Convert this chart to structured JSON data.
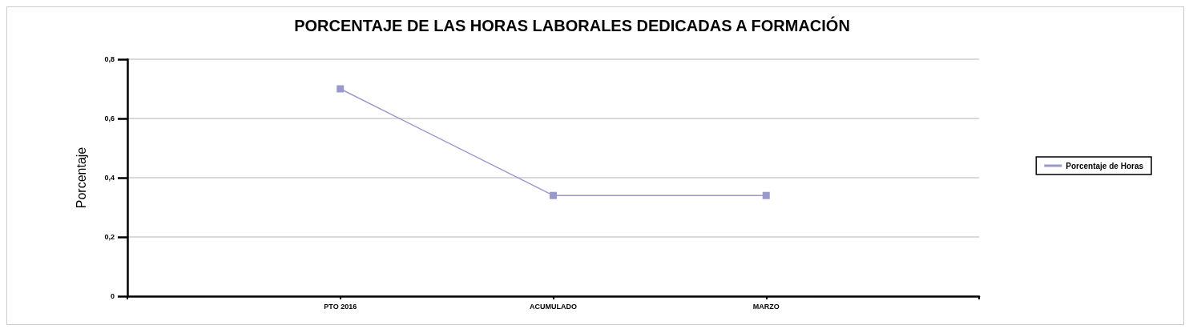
{
  "chart_data": {
    "type": "line",
    "title": "PORCENTAJE DE LAS HORAS LABORALES DEDICADAS A FORMACIÓN",
    "ylabel": "Porcentaje",
    "categories": [
      null,
      "PTO 2016",
      "ACUMULADO",
      "MARZO",
      null
    ],
    "series": [
      {
        "name": "Porcentaje de Horas",
        "color": "#9999cc",
        "values": [
          null,
          0.7,
          0.34,
          0.34,
          null
        ]
      }
    ],
    "ylim": [
      0,
      0.8
    ],
    "yticks": [
      0,
      {
        "value": 0.2,
        "label": "0,2"
      },
      {
        "value": 0.4,
        "label": "0,4"
      },
      {
        "value": 0.6,
        "label": "0,6"
      },
      {
        "value": 0.8,
        "label": "0,8"
      }
    ],
    "grid": "y",
    "legend": "right",
    "marker": "square",
    "line_style": "solid"
  }
}
